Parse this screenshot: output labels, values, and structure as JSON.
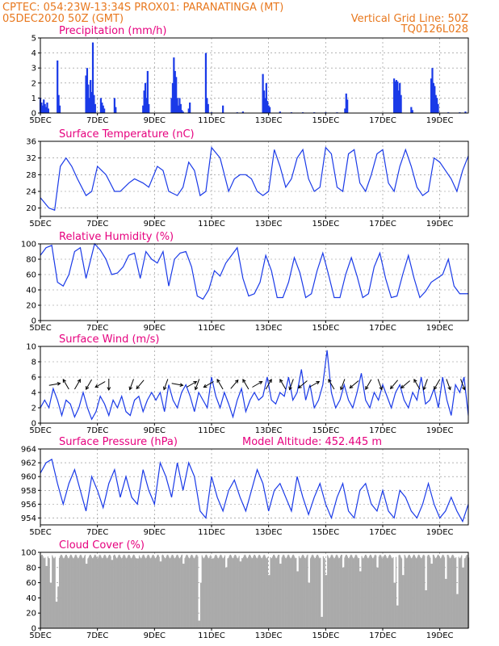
{
  "header": {
    "line1_left": "CPTEC:   054:23W-13:34S   PROX01: PARANATINGA (MT)",
    "line2_left": "05DEC2020 50Z (GMT)",
    "line2_right": "Vertical Grid Line: 50Z",
    "line3_right": "TQ0126L028"
  },
  "colors": {
    "header": "#e8781e",
    "title": "#e6007e",
    "series": "#1a3ae8",
    "cloud": "#aaaaaa",
    "grid": "#888888"
  },
  "x_axis": {
    "ticks": [
      "5DEC",
      "7DEC",
      "9DEC",
      "11DEC",
      "13DEC",
      "15DEC",
      "17DEC",
      "19DEC"
    ],
    "tick_days": [
      5,
      7,
      9,
      11,
      13,
      15,
      17,
      19
    ],
    "range_days": [
      5,
      20
    ]
  },
  "chart_data": [
    {
      "id": "precip",
      "type": "bar",
      "title": "Precipitation (mm/h)",
      "ylim": [
        0,
        5
      ],
      "yticks": [
        "0",
        "1",
        "2",
        "3",
        "4",
        "5"
      ],
      "bars": [
        [
          5.0,
          1.0
        ],
        [
          5.04,
          0.7
        ],
        [
          5.08,
          0.5
        ],
        [
          5.12,
          0.9
        ],
        [
          5.16,
          0.6
        ],
        [
          5.2,
          0.4
        ],
        [
          5.24,
          0.7
        ],
        [
          5.28,
          0.3
        ],
        [
          5.6,
          3.5
        ],
        [
          5.64,
          1.2
        ],
        [
          5.68,
          0.5
        ],
        [
          6.6,
          2.5
        ],
        [
          6.64,
          3.0
        ],
        [
          6.68,
          1.9
        ],
        [
          6.72,
          1.0
        ],
        [
          6.76,
          2.2
        ],
        [
          6.8,
          1.4
        ],
        [
          6.84,
          4.7
        ],
        [
          6.88,
          1.2
        ],
        [
          6.92,
          0.6
        ],
        [
          7.12,
          1.0
        ],
        [
          7.16,
          0.7
        ],
        [
          7.2,
          0.5
        ],
        [
          7.24,
          0.3
        ],
        [
          7.6,
          1.0
        ],
        [
          7.64,
          0.4
        ],
        [
          8.6,
          0.5
        ],
        [
          8.64,
          1.5
        ],
        [
          8.68,
          2.0
        ],
        [
          8.72,
          1.0
        ],
        [
          8.76,
          2.8
        ],
        [
          8.8,
          0.6
        ],
        [
          9.6,
          1.0
        ],
        [
          9.64,
          2.0
        ],
        [
          9.68,
          3.7
        ],
        [
          9.72,
          2.8
        ],
        [
          9.76,
          2.4
        ],
        [
          9.8,
          1.0
        ],
        [
          9.84,
          0.5
        ],
        [
          9.88,
          1.0
        ],
        [
          9.92,
          0.6
        ],
        [
          9.96,
          0.2
        ],
        [
          10.0,
          0.1
        ],
        [
          10.2,
          0.3
        ],
        [
          10.24,
          0.7
        ],
        [
          10.8,
          4.0
        ],
        [
          10.84,
          1.0
        ],
        [
          10.88,
          0.6
        ],
        [
          11.0,
          0.05
        ],
        [
          11.4,
          0.5
        ],
        [
          11.9,
          0.05
        ],
        [
          12.1,
          0.1
        ],
        [
          12.8,
          2.6
        ],
        [
          12.84,
          1.5
        ],
        [
          12.88,
          1.0
        ],
        [
          12.92,
          2.0
        ],
        [
          12.96,
          0.8
        ],
        [
          13.0,
          0.5
        ],
        [
          13.04,
          0.4
        ],
        [
          13.4,
          0.1
        ],
        [
          13.8,
          0.05
        ],
        [
          14.2,
          0.05
        ],
        [
          14.6,
          0.05
        ],
        [
          15.0,
          0.05
        ],
        [
          15.4,
          0.05
        ],
        [
          15.68,
          0.3
        ],
        [
          15.72,
          1.3
        ],
        [
          15.76,
          0.9
        ],
        [
          17.4,
          2.3
        ],
        [
          17.44,
          2.1
        ],
        [
          17.48,
          2.2
        ],
        [
          17.52,
          2.1
        ],
        [
          17.56,
          1.5
        ],
        [
          17.6,
          2.0
        ],
        [
          17.64,
          1.2
        ],
        [
          18.0,
          0.4
        ],
        [
          18.04,
          0.2
        ],
        [
          18.7,
          2.3
        ],
        [
          18.74,
          3.0
        ],
        [
          18.78,
          2.0
        ],
        [
          18.82,
          1.8
        ],
        [
          18.86,
          1.2
        ],
        [
          18.9,
          1.0
        ],
        [
          18.94,
          0.6
        ],
        [
          19.3,
          0.05
        ],
        [
          19.7,
          0.05
        ],
        [
          19.9,
          0.1
        ]
      ]
    },
    {
      "id": "temp",
      "type": "line",
      "title": "Surface Temperature (nC)",
      "ylim": [
        18,
        36
      ],
      "yticks": [
        "20",
        "24",
        "28",
        "32",
        "36"
      ],
      "ytick_values": [
        20,
        24,
        28,
        32,
        36
      ],
      "x": [
        5.0,
        5.3,
        5.5,
        5.7,
        5.9,
        6.1,
        6.3,
        6.6,
        6.8,
        7.0,
        7.3,
        7.6,
        7.8,
        8.1,
        8.3,
        8.6,
        8.8,
        9.1,
        9.3,
        9.5,
        9.8,
        10.0,
        10.2,
        10.4,
        10.6,
        10.8,
        11.0,
        11.3,
        11.6,
        11.8,
        12.0,
        12.2,
        12.4,
        12.6,
        12.8,
        13.0,
        13.2,
        13.4,
        13.6,
        13.8,
        14.0,
        14.2,
        14.4,
        14.6,
        14.8,
        15.0,
        15.2,
        15.4,
        15.6,
        15.8,
        16.0,
        16.2,
        16.4,
        16.6,
        16.8,
        17.0,
        17.2,
        17.4,
        17.6,
        17.8,
        18.0,
        18.2,
        18.4,
        18.6,
        18.8,
        19.0,
        19.2,
        19.4,
        19.6,
        19.8,
        20.0
      ],
      "y": [
        22.5,
        20,
        19.5,
        30,
        32,
        30,
        27,
        23,
        24,
        30,
        28,
        24,
        24,
        26,
        27,
        26,
        25,
        30,
        29,
        24,
        23,
        25,
        31,
        29,
        23,
        24,
        34.5,
        32,
        24,
        27,
        28,
        28,
        27,
        24,
        23,
        24,
        34,
        30,
        25,
        27,
        32,
        34,
        27,
        24,
        25,
        34.5,
        33,
        25,
        24,
        33,
        34,
        26,
        24,
        28,
        33,
        34,
        26,
        24,
        30,
        34,
        30,
        25,
        23,
        24,
        32,
        31,
        29,
        27,
        24,
        29,
        32.5
      ]
    },
    {
      "id": "rh",
      "type": "line",
      "title": "Relative Humidity (%)",
      "ylim": [
        0,
        100
      ],
      "yticks": [
        "0",
        "20",
        "40",
        "60",
        "80",
        "100"
      ],
      "ytick_values": [
        0,
        20,
        40,
        60,
        80,
        100
      ],
      "x": [
        5.0,
        5.2,
        5.4,
        5.6,
        5.8,
        6.0,
        6.2,
        6.4,
        6.6,
        6.9,
        7.1,
        7.3,
        7.5,
        7.7,
        7.9,
        8.1,
        8.3,
        8.5,
        8.7,
        8.9,
        9.1,
        9.3,
        9.5,
        9.7,
        9.9,
        10.1,
        10.3,
        10.5,
        10.7,
        10.9,
        11.1,
        11.3,
        11.5,
        11.7,
        11.9,
        12.1,
        12.3,
        12.5,
        12.7,
        12.9,
        13.1,
        13.3,
        13.5,
        13.7,
        13.9,
        14.1,
        14.3,
        14.5,
        14.7,
        14.9,
        15.1,
        15.3,
        15.5,
        15.7,
        15.9,
        16.1,
        16.3,
        16.5,
        16.7,
        16.9,
        17.1,
        17.3,
        17.5,
        17.7,
        17.9,
        18.1,
        18.3,
        18.5,
        18.7,
        18.9,
        19.1,
        19.3,
        19.5,
        19.7,
        19.9,
        20.0
      ],
      "y": [
        85,
        95,
        98,
        50,
        45,
        60,
        90,
        95,
        55,
        100,
        92,
        80,
        60,
        62,
        70,
        85,
        88,
        55,
        90,
        80,
        75,
        90,
        45,
        80,
        88,
        90,
        70,
        32,
        28,
        40,
        65,
        58,
        75,
        85,
        95,
        55,
        32,
        35,
        50,
        85,
        65,
        30,
        30,
        50,
        82,
        62,
        30,
        35,
        65,
        88,
        60,
        30,
        30,
        60,
        82,
        58,
        30,
        35,
        70,
        88,
        55,
        30,
        32,
        60,
        85,
        55,
        30,
        38,
        50,
        55,
        60,
        80,
        45,
        35,
        35,
        35
      ]
    },
    {
      "id": "wind",
      "type": "line",
      "title": "Surface Wind (m/s)",
      "ylim": [
        0,
        10
      ],
      "yticks": [
        "0",
        "2",
        "4",
        "6",
        "8",
        "10"
      ],
      "ytick_values": [
        0,
        2,
        4,
        6,
        8,
        10
      ],
      "x": [
        5.0,
        5.15,
        5.3,
        5.45,
        5.6,
        5.75,
        5.9,
        6.05,
        6.2,
        6.35,
        6.5,
        6.65,
        6.8,
        6.95,
        7.1,
        7.25,
        7.4,
        7.55,
        7.7,
        7.85,
        8.0,
        8.15,
        8.3,
        8.45,
        8.6,
        8.75,
        8.9,
        9.05,
        9.2,
        9.35,
        9.5,
        9.65,
        9.8,
        9.95,
        10.1,
        10.25,
        10.4,
        10.55,
        10.7,
        10.85,
        11.0,
        11.15,
        11.3,
        11.45,
        11.6,
        11.75,
        11.9,
        12.05,
        12.2,
        12.35,
        12.5,
        12.65,
        12.8,
        12.95,
        13.1,
        13.25,
        13.4,
        13.55,
        13.7,
        13.85,
        14.0,
        14.15,
        14.3,
        14.45,
        14.6,
        14.75,
        14.9,
        15.05,
        15.2,
        15.35,
        15.5,
        15.65,
        15.8,
        15.95,
        16.1,
        16.25,
        16.4,
        16.55,
        16.7,
        16.85,
        17.0,
        17.15,
        17.3,
        17.45,
        17.6,
        17.75,
        17.9,
        18.05,
        18.2,
        18.35,
        18.5,
        18.65,
        18.8,
        18.95,
        19.1,
        19.25,
        19.4,
        19.55,
        19.7,
        19.85,
        20.0
      ],
      "y": [
        2,
        3,
        2,
        4.5,
        3,
        1,
        3,
        2.5,
        0.8,
        2,
        4,
        2,
        0.5,
        1.5,
        3.5,
        2.5,
        1,
        3,
        2,
        3.5,
        1.5,
        1,
        3,
        3.5,
        1.5,
        3,
        4,
        3,
        4,
        1.5,
        5,
        3,
        2,
        4,
        5,
        3.5,
        1.5,
        4,
        3,
        2,
        6,
        3.5,
        2,
        4,
        2.5,
        0.8,
        3,
        4.5,
        1.5,
        3,
        4,
        3,
        3.5,
        6,
        3,
        2.5,
        4,
        3.5,
        6,
        3,
        4,
        7,
        3,
        5,
        2,
        3,
        5,
        9.5,
        4,
        2,
        3,
        5,
        3,
        2,
        4,
        6.5,
        3,
        2,
        4,
        3,
        5,
        3.5,
        2,
        4,
        5,
        3,
        2,
        4,
        3,
        6,
        2.5,
        3,
        4.5,
        2,
        6,
        3,
        1,
        5,
        4,
        6,
        1
      ]
    },
    {
      "id": "pressure",
      "type": "line",
      "title": "Surface Pressure (hPa)",
      "annotation": "Model Altitude: 452.445  m",
      "ylim": [
        953,
        964
      ],
      "yticks": [
        "954",
        "956",
        "958",
        "960",
        "962",
        "964"
      ],
      "ytick_values": [
        954,
        956,
        958,
        960,
        962,
        964
      ],
      "x": [
        5.0,
        5.2,
        5.4,
        5.6,
        5.8,
        6.0,
        6.2,
        6.4,
        6.6,
        6.8,
        7.0,
        7.2,
        7.4,
        7.6,
        7.8,
        8.0,
        8.2,
        8.4,
        8.6,
        8.8,
        9.0,
        9.2,
        9.4,
        9.6,
        9.8,
        10.0,
        10.2,
        10.4,
        10.6,
        10.8,
        11.0,
        11.2,
        11.4,
        11.6,
        11.8,
        12.0,
        12.2,
        12.4,
        12.6,
        12.8,
        13.0,
        13.2,
        13.4,
        13.6,
        13.8,
        14.0,
        14.2,
        14.4,
        14.6,
        14.8,
        15.0,
        15.2,
        15.4,
        15.6,
        15.8,
        16.0,
        16.2,
        16.4,
        16.6,
        16.8,
        17.0,
        17.2,
        17.4,
        17.6,
        17.8,
        18.0,
        18.2,
        18.4,
        18.6,
        18.8,
        19.0,
        19.2,
        19.4,
        19.6,
        19.8,
        20.0
      ],
      "y": [
        960.5,
        962,
        962.5,
        959,
        956,
        959,
        961,
        958,
        955,
        960,
        958,
        955.5,
        959,
        961,
        957,
        960,
        957,
        956,
        961,
        958,
        956,
        962,
        960,
        957,
        962,
        958,
        962,
        960,
        955,
        954,
        960,
        957,
        955,
        958,
        959.5,
        957,
        955,
        958,
        961,
        959,
        955,
        958,
        959,
        957,
        955,
        960,
        957,
        954.5,
        957,
        959,
        956,
        954,
        957,
        959,
        955,
        954,
        958,
        959,
        956,
        955,
        958,
        955,
        954,
        958,
        957,
        955,
        954,
        956,
        959,
        956,
        954,
        955,
        957,
        955,
        953.5,
        956
      ]
    },
    {
      "id": "cloud",
      "type": "bar",
      "title": "Cloud Cover (%)",
      "ylim": [
        0,
        100
      ],
      "yticks": [
        "0",
        "20",
        "40",
        "60",
        "80",
        "100"
      ],
      "ytick_values": [
        0,
        20,
        40,
        60,
        80,
        100
      ],
      "base_level": 97,
      "dips": [
        [
          5.2,
          82
        ],
        [
          5.35,
          60
        ],
        [
          5.55,
          35
        ],
        [
          5.6,
          55
        ],
        [
          6.6,
          85
        ],
        [
          7.5,
          90
        ],
        [
          8.4,
          92
        ],
        [
          9.2,
          88
        ],
        [
          10.0,
          85
        ],
        [
          10.55,
          10
        ],
        [
          10.6,
          60
        ],
        [
          11.0,
          92
        ],
        [
          11.5,
          80
        ],
        [
          12.0,
          88
        ],
        [
          13.0,
          70
        ],
        [
          13.4,
          85
        ],
        [
          14.0,
          75
        ],
        [
          14.4,
          60
        ],
        [
          14.85,
          15
        ],
        [
          15.0,
          70
        ],
        [
          15.6,
          80
        ],
        [
          16.2,
          75
        ],
        [
          16.8,
          80
        ],
        [
          17.4,
          60
        ],
        [
          17.5,
          30
        ],
        [
          17.7,
          70
        ],
        [
          18.5,
          50
        ],
        [
          18.7,
          85
        ],
        [
          19.2,
          65
        ],
        [
          19.6,
          45
        ],
        [
          19.8,
          80
        ]
      ]
    }
  ],
  "panels": [
    {
      "title": "Precipitation (mm/h)"
    },
    {
      "title": "Surface Temperature (nC)"
    },
    {
      "title": "Relative Humidity (%)"
    },
    {
      "title": "Surface Wind (m/s)"
    },
    {
      "title": "Surface Pressure (hPa)",
      "annotation": "Model Altitude: 452.445  m"
    },
    {
      "title": "Cloud Cover (%)"
    }
  ]
}
